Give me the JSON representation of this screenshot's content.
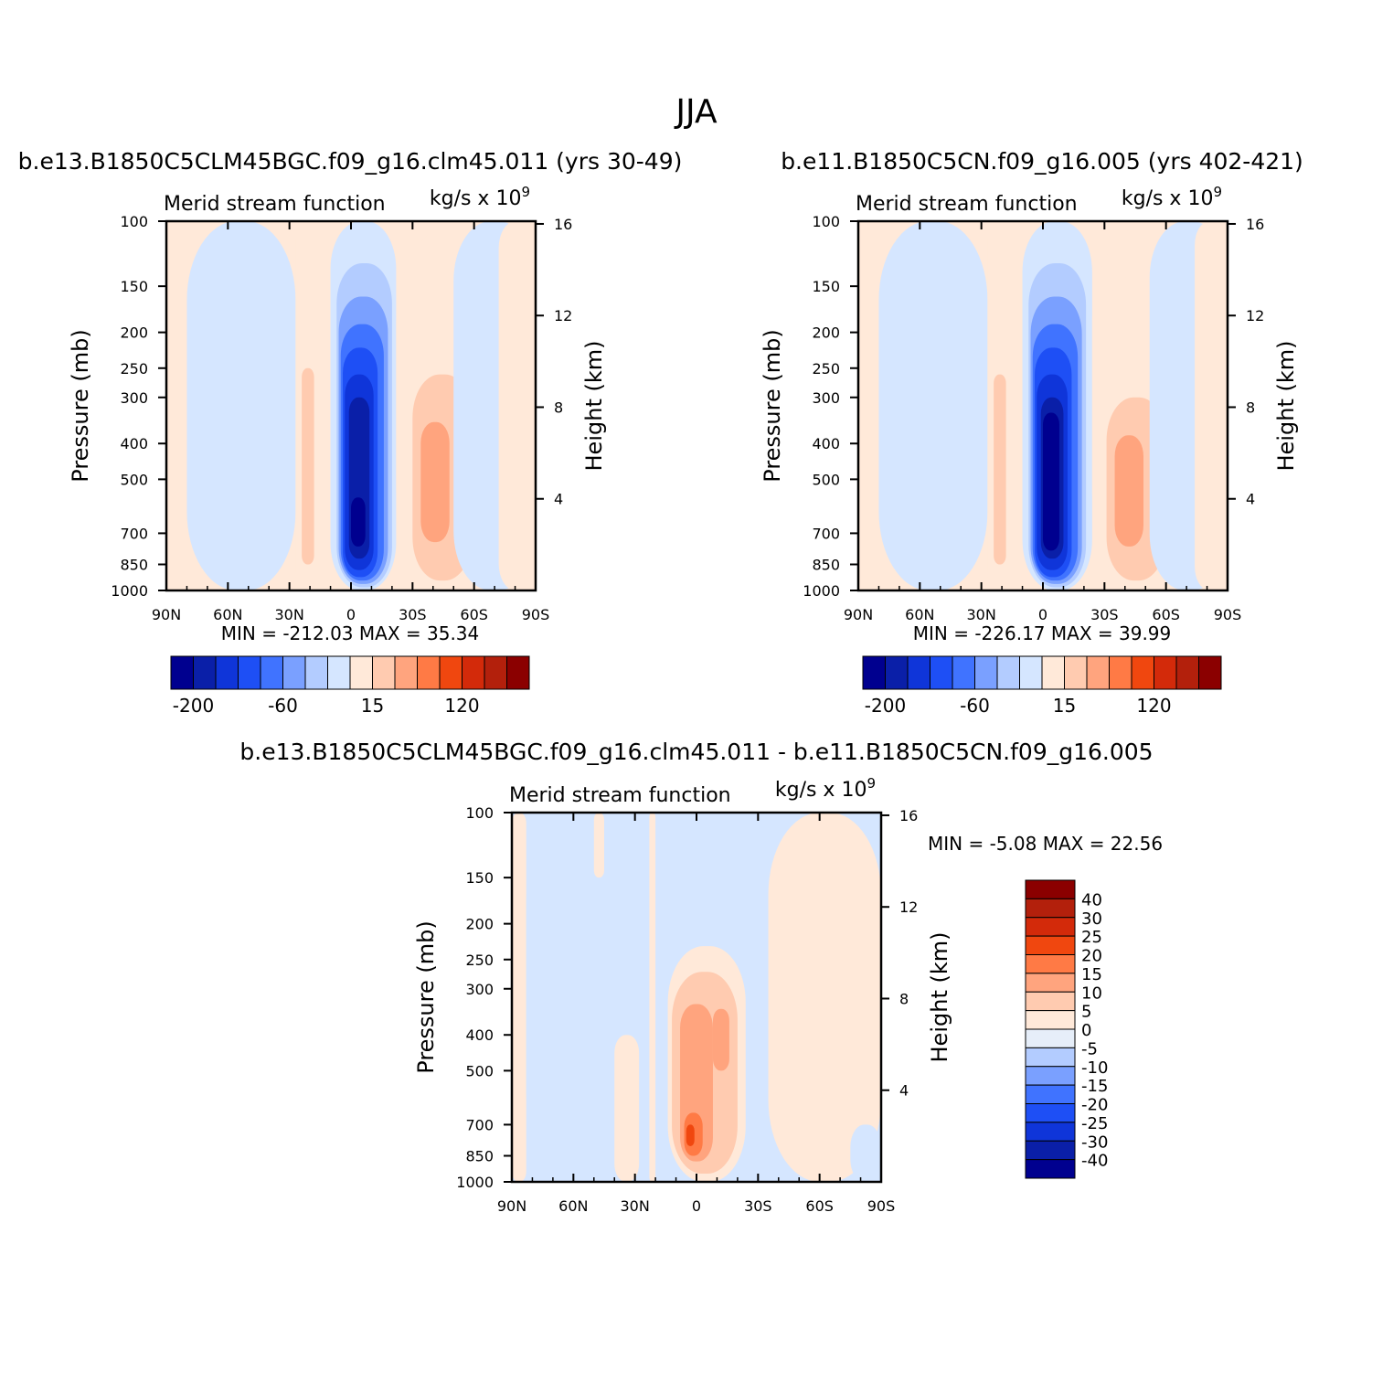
{
  "figure_title": "JJA",
  "colors": {
    "n40": "#00008f",
    "n30": "#0a1fa8",
    "n25": "#0f35d9",
    "n20": "#1e4ff5",
    "n15": "#4073ff",
    "n10": "#7aa0ff",
    "n5": "#b3ccff",
    "n0": "#d5e6ff",
    "p5": "#ffe9d9",
    "p10": "#ffcbb0",
    "p15": "#ffa47e",
    "p20": "#ff7a45",
    "p25": "#f0470f",
    "p30": "#d32a0a",
    "p40": "#b3200c",
    "p50": "#8b0000",
    "diff_zero": "#e6eef9"
  },
  "panels": [
    {
      "id": "panel-left",
      "title": "b.e13.B1850C5CLM45BGC.f09_g16.clm45.011 (yrs 30-49)",
      "subtitle": "Merid stream function",
      "units": "kg/s x 10",
      "units_exp": "9",
      "minmax": "MIN = -212.03   MAX =   35.34",
      "cells": [
        {
          "lat": [
            -90,
            -80
          ],
          "p": [
            100,
            1000
          ],
          "c": "p5"
        },
        {
          "lat": [
            -80,
            -27
          ],
          "p": [
            100,
            1000
          ],
          "c": "n0"
        },
        {
          "lat": [
            -27,
            -15
          ],
          "p": [
            100,
            1000
          ],
          "c": "p5"
        },
        {
          "lat": [
            -24,
            -18
          ],
          "p": [
            250,
            850
          ],
          "c": "p10"
        },
        {
          "lat": [
            -10,
            22
          ],
          "p": [
            100,
            1000
          ],
          "c": "n0"
        },
        {
          "lat": [
            -7,
            20
          ],
          "p": [
            130,
            980
          ],
          "c": "n5"
        },
        {
          "lat": [
            -6,
            18
          ],
          "p": [
            160,
            960
          ],
          "c": "n10"
        },
        {
          "lat": [
            -5,
            16
          ],
          "p": [
            190,
            940
          ],
          "c": "n15"
        },
        {
          "lat": [
            -4,
            13
          ],
          "p": [
            220,
            920
          ],
          "c": "n20"
        },
        {
          "lat": [
            -3,
            11
          ],
          "p": [
            260,
            880
          ],
          "c": "n25"
        },
        {
          "lat": [
            -1,
            9
          ],
          "p": [
            300,
            820
          ],
          "c": "n30"
        },
        {
          "lat": [
            0,
            7
          ],
          "p": [
            560,
            760
          ],
          "c": "n40"
        },
        {
          "lat": [
            22,
            90
          ],
          "p": [
            100,
            1000
          ],
          "c": "p5"
        },
        {
          "lat": [
            28,
            60
          ],
          "p": [
            120,
            1000
          ],
          "c": "p5"
        },
        {
          "lat": [
            30,
            59
          ],
          "p": [
            260,
            940
          ],
          "c": "p10"
        },
        {
          "lat": [
            34,
            48
          ],
          "p": [
            350,
            740
          ],
          "c": "p15"
        },
        {
          "lat": [
            50,
            90
          ],
          "p": [
            100,
            1000
          ],
          "c": "n0"
        },
        {
          "lat": [
            72,
            90
          ],
          "p": [
            100,
            1000
          ],
          "c": "p5"
        }
      ],
      "colorbar": {
        "labels": [
          {
            "i": 1,
            "text": "-200"
          },
          {
            "i": 5,
            "text": "-60"
          },
          {
            "i": 9,
            "text": "15"
          },
          {
            "i": 13,
            "text": "120"
          }
        ]
      }
    },
    {
      "id": "panel-right",
      "title": "b.e11.B1850C5CN.f09_g16.005 (yrs 402-421)",
      "subtitle": "Merid stream function",
      "units": "kg/s x 10",
      "units_exp": "9",
      "minmax": "MIN = -226.17   MAX =   39.99",
      "cells": [
        {
          "lat": [
            -90,
            -80
          ],
          "p": [
            100,
            1000
          ],
          "c": "p5"
        },
        {
          "lat": [
            -80,
            -27
          ],
          "p": [
            100,
            1000
          ],
          "c": "n0"
        },
        {
          "lat": [
            -27,
            -15
          ],
          "p": [
            100,
            1000
          ],
          "c": "p5"
        },
        {
          "lat": [
            -24,
            -18
          ],
          "p": [
            260,
            850
          ],
          "c": "p10"
        },
        {
          "lat": [
            -10,
            24
          ],
          "p": [
            100,
            1000
          ],
          "c": "n0"
        },
        {
          "lat": [
            -7,
            21
          ],
          "p": [
            130,
            980
          ],
          "c": "n5"
        },
        {
          "lat": [
            -6,
            19
          ],
          "p": [
            160,
            960
          ],
          "c": "n10"
        },
        {
          "lat": [
            -5,
            17
          ],
          "p": [
            190,
            940
          ],
          "c": "n15"
        },
        {
          "lat": [
            -4,
            14
          ],
          "p": [
            220,
            920
          ],
          "c": "n20"
        },
        {
          "lat": [
            -3,
            12
          ],
          "p": [
            260,
            880
          ],
          "c": "n25"
        },
        {
          "lat": [
            -1,
            10
          ],
          "p": [
            300,
            820
          ],
          "c": "n30"
        },
        {
          "lat": [
            0,
            8
          ],
          "p": [
            330,
            780
          ],
          "c": "n40"
        },
        {
          "lat": [
            24,
            90
          ],
          "p": [
            100,
            1000
          ],
          "c": "p5"
        },
        {
          "lat": [
            30,
            62
          ],
          "p": [
            140,
            1000
          ],
          "c": "p5"
        },
        {
          "lat": [
            31,
            60
          ],
          "p": [
            300,
            940
          ],
          "c": "p10"
        },
        {
          "lat": [
            35,
            49
          ],
          "p": [
            380,
            760
          ],
          "c": "p15"
        },
        {
          "lat": [
            52,
            90
          ],
          "p": [
            100,
            1000
          ],
          "c": "n0"
        },
        {
          "lat": [
            74,
            90
          ],
          "p": [
            100,
            1000
          ],
          "c": "p5"
        }
      ],
      "colorbar": {
        "labels": [
          {
            "i": 1,
            "text": "-200"
          },
          {
            "i": 5,
            "text": "-60"
          },
          {
            "i": 9,
            "text": "15"
          },
          {
            "i": 13,
            "text": "120"
          }
        ]
      }
    },
    {
      "id": "panel-diff",
      "title": "b.e13.B1850C5CLM45BGC.f09_g16.clm45.011 - b.e11.B1850C5CN.f09_g16.005",
      "subtitle": "Merid stream function",
      "units": "kg/s x 10",
      "units_exp": "9",
      "minmax": "MIN =   -5.08   MAX =   22.56",
      "cells": [
        {
          "lat": [
            -90,
            -83
          ],
          "p": [
            100,
            1000
          ],
          "c": "p5"
        },
        {
          "lat": [
            -83,
            -23
          ],
          "p": [
            100,
            1000
          ],
          "c": "n0"
        },
        {
          "lat": [
            -50,
            -45
          ],
          "p": [
            100,
            150
          ],
          "c": "p5"
        },
        {
          "lat": [
            -40,
            -28
          ],
          "p": [
            400,
            1000
          ],
          "c": "p5"
        },
        {
          "lat": [
            -23,
            -20
          ],
          "p": [
            100,
            1000
          ],
          "c": "p5"
        },
        {
          "lat": [
            -14,
            24
          ],
          "p": [
            230,
            1000
          ],
          "c": "p5"
        },
        {
          "lat": [
            -12,
            20
          ],
          "p": [
            270,
            950
          ],
          "c": "p10"
        },
        {
          "lat": [
            -8,
            8
          ],
          "p": [
            330,
            880
          ],
          "c": "p15"
        },
        {
          "lat": [
            8,
            16
          ],
          "p": [
            340,
            500
          ],
          "c": "p15"
        },
        {
          "lat": [
            -6,
            3
          ],
          "p": [
            650,
            850
          ],
          "c": "p20"
        },
        {
          "lat": [
            -5,
            -1
          ],
          "p": [
            700,
            800
          ],
          "c": "p25"
        },
        {
          "lat": [
            24,
            35
          ],
          "p": [
            150,
            1000
          ],
          "c": "n0"
        },
        {
          "lat": [
            35,
            90
          ],
          "p": [
            100,
            1000
          ],
          "c": "p5"
        },
        {
          "lat": [
            75,
            90
          ],
          "p": [
            700,
            1000
          ],
          "c": "n0"
        }
      ],
      "colorbar": {
        "labels": [
          "40",
          "30",
          "25",
          "20",
          "15",
          "10",
          "5",
          "0",
          "-5",
          "-10",
          "-15",
          "-20",
          "-25",
          "-30",
          "-40"
        ]
      }
    }
  ],
  "axes": {
    "x_ticks": [
      {
        "lat": -90,
        "label": "90N"
      },
      {
        "lat": -60,
        "label": "60N"
      },
      {
        "lat": -30,
        "label": "30N"
      },
      {
        "lat": 0,
        "label": "0"
      },
      {
        "lat": 30,
        "label": "30S"
      },
      {
        "lat": 60,
        "label": "60S"
      },
      {
        "lat": 90,
        "label": "90S"
      }
    ],
    "p_ticks": [
      100,
      150,
      200,
      250,
      300,
      400,
      500,
      700,
      850,
      1000
    ],
    "h_ticks": [
      4,
      8,
      12,
      16
    ],
    "ylabel": "Pressure (mb)",
    "y2label": "Height (km)"
  },
  "colorbar_main": [
    "n40",
    "n30",
    "n25",
    "n20",
    "n15",
    "n10",
    "n5",
    "n0",
    "p5",
    "p10",
    "p15",
    "p20",
    "p25",
    "p30",
    "p40",
    "p50"
  ],
  "colorbar_diff": [
    "p50",
    "p40",
    "p30",
    "p25",
    "p20",
    "p15",
    "p10",
    "p5",
    "diff_zero",
    "n5",
    "n10",
    "n15",
    "n20",
    "n25",
    "n30",
    "n40"
  ]
}
